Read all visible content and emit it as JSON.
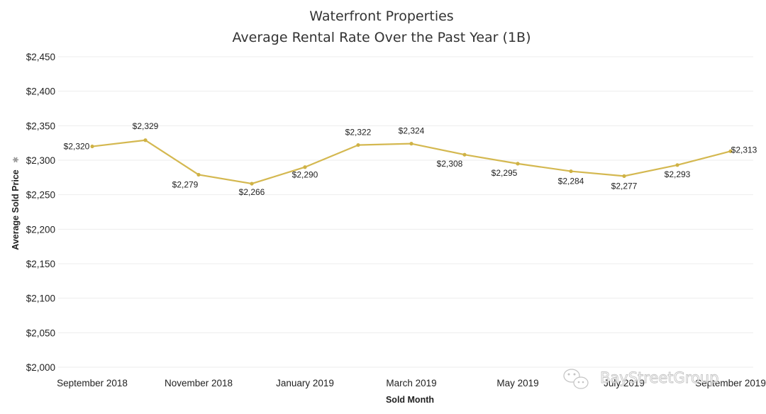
{
  "chart_data": {
    "type": "line",
    "title": "Waterfront Properties",
    "subtitle": "Average Rental Rate Over the Past Year (1B)",
    "xlabel": "Sold Month",
    "ylabel": "Average Sold Price",
    "ylabel_icon": "✱",
    "ylim": [
      2000,
      2450
    ],
    "yticks": [
      2000,
      2050,
      2100,
      2150,
      2200,
      2250,
      2300,
      2350,
      2400,
      2450
    ],
    "ytick_labels": [
      "$2,000",
      "$2,050",
      "$2,100",
      "$2,150",
      "$2,200",
      "$2,250",
      "$2,300",
      "$2,350",
      "$2,400",
      "$2,450"
    ],
    "categories": [
      "Sep 2018",
      "Oct 2018",
      "Nov 2018",
      "Dec 2018",
      "Jan 2019",
      "Feb 2019",
      "Mar 2019",
      "Apr 2019",
      "May 2019",
      "Jun 2019",
      "Jul 2019",
      "Aug 2019",
      "Sep 2019"
    ],
    "xtick_labels": [
      {
        "index": 0,
        "label": "September 2018"
      },
      {
        "index": 2,
        "label": "November 2018"
      },
      {
        "index": 4,
        "label": "January 2019"
      },
      {
        "index": 6,
        "label": "March 2019"
      },
      {
        "index": 8,
        "label": "May 2019"
      },
      {
        "index": 10,
        "label": "July 2019"
      },
      {
        "index": 12,
        "label": "September 2019"
      }
    ],
    "series": [
      {
        "name": "Average Sold Price",
        "color": "#d4b850",
        "values": [
          2320,
          2329,
          2279,
          2266,
          2290,
          2322,
          2324,
          2308,
          2295,
          2284,
          2277,
          2293,
          2313
        ],
        "data_labels": [
          "$2,320",
          "$2,329",
          "$2,279",
          "$2,266",
          "$2,290",
          "$2,322",
          "$2,324",
          "$2,308",
          "$2,295",
          "$2,284",
          "$2,277",
          "$2,293",
          "$2,313"
        ]
      }
    ],
    "grid": true
  },
  "watermark": {
    "text": "BayStreetGroup",
    "icon": "wechat-icon"
  }
}
